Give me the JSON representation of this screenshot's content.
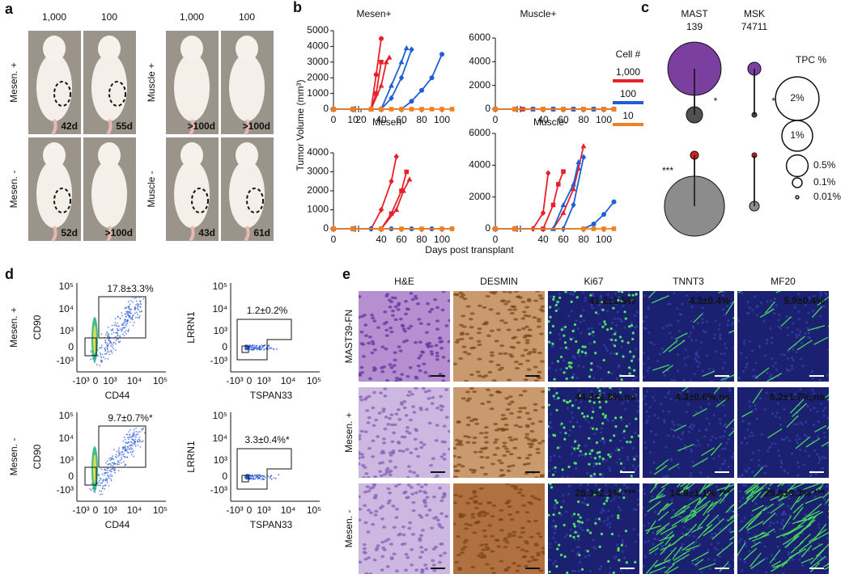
{
  "a": {
    "label": "a",
    "column_headers": [
      "1,000",
      "100",
      "1,000",
      "100"
    ],
    "row_labels": [
      "Mesen. +",
      "Mesen. -",
      "Muscle +",
      "Muscle -"
    ],
    "days": [
      [
        "42d",
        "55d"
      ],
      [
        "52d",
        ">100d"
      ],
      [
        ">100d",
        ">100d"
      ],
      [
        "43d",
        "61d"
      ]
    ]
  },
  "b": {
    "label": "b",
    "y_label": "Tumor Volume (mm³)",
    "x_label": "Days post transplant",
    "legend_title": "Cell #",
    "legend": [
      {
        "name": "1,000",
        "color": "#e8202a"
      },
      {
        "name": "100",
        "color": "#1f5fd6"
      },
      {
        "name": "10",
        "color": "#f08020"
      }
    ],
    "charts": [
      {
        "type": "line",
        "title": "Mesen+",
        "title_color": "#6a2c9c",
        "xlim": [
          0,
          110
        ],
        "ylim": [
          0,
          5000
        ],
        "xticks": [
          0,
          10,
          20,
          40,
          60,
          80,
          100
        ],
        "yticks": [
          0,
          1000,
          2000,
          3000,
          4000,
          5000
        ],
        "series": [
          {
            "color": "#e8202a",
            "marker": "circle",
            "x": [
              0,
              10,
              30,
              35,
              40
            ],
            "values": [
              0,
              0,
              0,
              2200,
              4500
            ]
          },
          {
            "color": "#e8202a",
            "marker": "square",
            "x": [
              0,
              10,
              30,
              35,
              40
            ],
            "values": [
              0,
              0,
              0,
              1000,
              3000
            ]
          },
          {
            "color": "#e8202a",
            "marker": "triangle",
            "x": [
              0,
              10,
              30,
              40,
              45,
              48
            ],
            "values": [
              0,
              0,
              0,
              1500,
              3000,
              3300
            ]
          },
          {
            "color": "#1f5fd6",
            "marker": "triangle",
            "x": [
              0,
              10,
              40,
              50,
              60,
              65
            ],
            "values": [
              0,
              0,
              0,
              1500,
              3000,
              3900
            ]
          },
          {
            "color": "#1f5fd6",
            "marker": "diamond",
            "x": [
              0,
              10,
              40,
              50,
              60,
              70
            ],
            "values": [
              0,
              0,
              0,
              700,
              2000,
              3800
            ]
          },
          {
            "color": "#1f5fd6",
            "marker": "circle",
            "x": [
              0,
              10,
              60,
              70,
              80,
              90,
              100
            ],
            "values": [
              0,
              0,
              0,
              500,
              1200,
              2000,
              3500
            ]
          },
          {
            "color": "#f08020",
            "marker": "square",
            "x": [
              0,
              10,
              30,
              40,
              50,
              60,
              70,
              80,
              90,
              100,
              110
            ],
            "values": [
              0,
              0,
              0,
              0,
              0,
              0,
              0,
              0,
              0,
              0,
              0
            ]
          }
        ]
      },
      {
        "type": "line",
        "title": "Muscle+",
        "title_color": "#e8202a",
        "xlim": [
          0,
          110
        ],
        "ylim": [
          0,
          6000
        ],
        "xticks": [
          0,
          40,
          60,
          80,
          100
        ],
        "yticks": [
          0,
          2000,
          4000,
          6000
        ],
        "series": [
          {
            "color": "#e8202a",
            "marker": "square",
            "x": [
              0,
              10,
              20,
              30,
              40,
              50,
              60,
              70,
              80,
              90,
              100,
              110
            ],
            "values": [
              0,
              0,
              0,
              0,
              0,
              0,
              0,
              0,
              0,
              0,
              0,
              0
            ]
          },
          {
            "color": "#1f5fd6",
            "marker": "circle",
            "x": [
              0,
              10,
              30,
              50,
              70,
              90,
              110
            ],
            "values": [
              0,
              0,
              0,
              0,
              0,
              0,
              0
            ]
          },
          {
            "color": "#f08020",
            "marker": "square",
            "x": [
              0,
              10,
              40,
              60,
              80,
              100,
              110
            ],
            "values": [
              0,
              0,
              0,
              0,
              0,
              0,
              0
            ]
          }
        ]
      },
      {
        "type": "line",
        "title": "Mesen-",
        "title_color": "#111111",
        "xlim": [
          0,
          110
        ],
        "ylim": [
          0,
          4000
        ],
        "xticks": [
          0,
          40,
          60,
          80,
          100
        ],
        "yticks": [
          0,
          1000,
          2000,
          3000,
          4000
        ],
        "series": [
          {
            "color": "#e8202a",
            "marker": "diamond",
            "x": [
              0,
              10,
              30,
              40,
              50,
              55
            ],
            "values": [
              0,
              0,
              0,
              1000,
              2500,
              3800
            ]
          },
          {
            "color": "#e8202a",
            "marker": "square",
            "x": [
              0,
              10,
              40,
              50,
              60,
              65
            ],
            "values": [
              0,
              0,
              0,
              800,
              2000,
              3000
            ]
          },
          {
            "color": "#e8202a",
            "marker": "triangle",
            "x": [
              0,
              10,
              40,
              55,
              62,
              68
            ],
            "values": [
              0,
              0,
              0,
              1000,
              2000,
              2600
            ]
          },
          {
            "color": "#1f5fd6",
            "marker": "circle",
            "x": [
              0,
              10,
              30,
              50,
              70,
              90,
              110
            ],
            "values": [
              0,
              0,
              0,
              0,
              0,
              0,
              0
            ]
          },
          {
            "color": "#f08020",
            "marker": "square",
            "x": [
              0,
              10,
              40,
              60,
              80,
              100,
              110
            ],
            "values": [
              0,
              0,
              0,
              0,
              0,
              0,
              0
            ]
          }
        ]
      },
      {
        "type": "line",
        "title": "Muscle-",
        "title_color": "#111111",
        "xlim": [
          0,
          110
        ],
        "ylim": [
          0,
          6000
        ],
        "xticks": [
          0,
          40,
          60,
          80,
          100
        ],
        "yticks": [
          0,
          2000,
          4000,
          6000
        ],
        "series": [
          {
            "color": "#e8202a",
            "marker": "diamond",
            "x": [
              0,
              10,
              30,
              40,
              45
            ],
            "values": [
              0,
              0,
              0,
              1000,
              3500
            ]
          },
          {
            "color": "#e8202a",
            "marker": "square",
            "x": [
              0,
              10,
              40,
              50,
              55,
              60
            ],
            "values": [
              0,
              0,
              0,
              1500,
              2800,
              3600
            ]
          },
          {
            "color": "#e8202a",
            "marker": "triangle",
            "x": [
              0,
              10,
              50,
              60,
              70,
              75,
              80
            ],
            "values": [
              0,
              0,
              0,
              1000,
              2500,
              3800,
              5200
            ]
          },
          {
            "color": "#1f5fd6",
            "marker": "triangle",
            "x": [
              0,
              10,
              50,
              60,
              70,
              75
            ],
            "values": [
              0,
              0,
              0,
              1500,
              2800,
              4200
            ]
          },
          {
            "color": "#1f5fd6",
            "marker": "diamond",
            "x": [
              0,
              10,
              60,
              70,
              80
            ],
            "values": [
              0,
              0,
              0,
              1500,
              4500
            ]
          },
          {
            "color": "#1f5fd6",
            "marker": "circle",
            "x": [
              0,
              10,
              80,
              90,
              100,
              110
            ],
            "values": [
              0,
              0,
              0,
              300,
              900,
              1700
            ]
          },
          {
            "color": "#f08020",
            "marker": "square",
            "x": [
              0,
              10,
              80,
              90,
              100,
              110
            ],
            "values": [
              0,
              0,
              0,
              0,
              0,
              0
            ]
          }
        ]
      }
    ]
  },
  "c": {
    "label": "c",
    "legend_title": "TPC %",
    "legend": [
      {
        "value": 2,
        "label": "2%"
      },
      {
        "value": 1,
        "label": "1%"
      },
      {
        "value": 0.5,
        "label": "0.5%"
      },
      {
        "value": 0.1,
        "label": "0.1%"
      },
      {
        "value": 0.01,
        "label": "0.01%"
      }
    ],
    "columns": [
      {
        "name": [
          "MAST",
          "139"
        ],
        "pairs": [
          {
            "top": {
              "value": 3,
              "color": "#7b3fa0"
            },
            "bottom": {
              "value": 0.28,
              "color": "#505050"
            },
            "significance": "*"
          },
          {
            "top": {
              "value": 0.07,
              "color": "#d42020"
            },
            "bottom": {
              "value": 3.8,
              "color": "#8c8c8c"
            },
            "significance": "***"
          }
        ]
      },
      {
        "name": [
          "MSK",
          "74711"
        ],
        "pairs": [
          {
            "top": {
              "value": 0.18,
              "color": "#7b3fa0"
            },
            "bottom": {
              "value": 0.025,
              "color": "#505050"
            },
            "significance": "**"
          },
          {
            "top": {
              "value": 0.025,
              "color": "#d42020"
            },
            "bottom": {
              "value": 0.1,
              "color": "#8c8c8c"
            }
          }
        ]
      }
    ]
  },
  "d": {
    "label": "d",
    "row_labels": [
      "Mesen. +",
      "Mesen. -"
    ],
    "yticks": [
      "10⁵",
      "10⁴",
      "10³",
      "0",
      "-10³"
    ],
    "xticks": [
      "-10³",
      "0",
      "10³",
      "10⁴",
      "10⁵"
    ],
    "plots": [
      {
        "y_label": "CD90",
        "x_label": "CD44",
        "gate_label": "17.8±3.3%"
      },
      {
        "y_label": "LRRN1",
        "x_label": "TSPAN33",
        "gate_label": "1.2±0.2%"
      },
      {
        "y_label": "CD90",
        "x_label": "CD44",
        "gate_label": "9.7±0.7%*"
      },
      {
        "y_label": "LRRN1",
        "x_label": "TSPAN33",
        "gate_label": "3.3±0.4%*"
      }
    ]
  },
  "e": {
    "label": "e",
    "columns": [
      "H&E",
      "DESMIN",
      "Ki67",
      "TNNT3",
      "MF20"
    ],
    "rows": [
      {
        "name": "MAST39-FN",
        "values": [
          "41.2±1.5%",
          "4.3±0.4%",
          "5.9±0.4%"
        ]
      },
      {
        "name": "Mesen. +",
        "values": [
          "44.4±1.8%,ns",
          "4.3±0.6%,ns",
          "6.2±1.7%,ns"
        ]
      },
      {
        "name": "Mesen. -",
        "values": [
          "28.3±2.1% ***",
          "14.9±1.1% ***",
          "29.8±3.3% ***"
        ]
      }
    ]
  }
}
